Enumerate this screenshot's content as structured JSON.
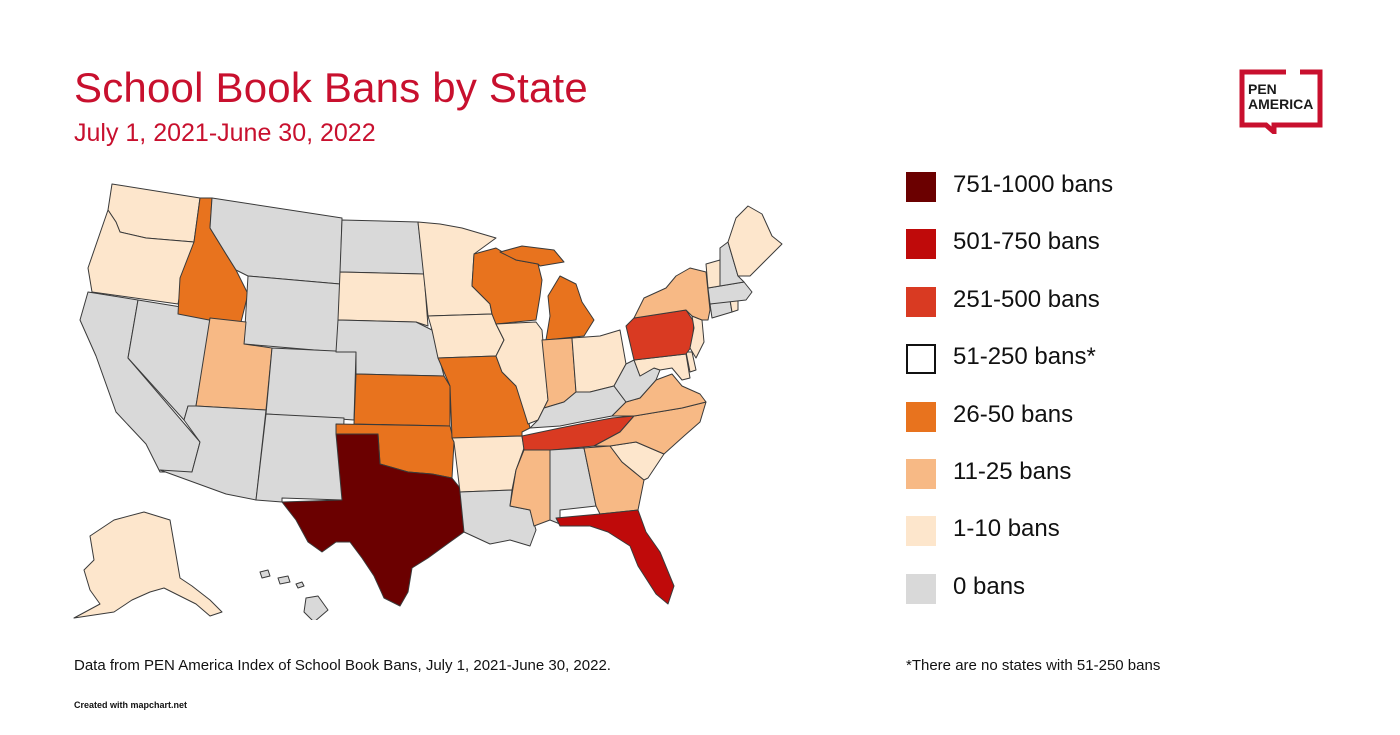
{
  "title": "School Book Bans by State",
  "subtitle": "July 1, 2021-June 30, 2022",
  "logo": {
    "line1": "PEN",
    "line2": "AMERICA",
    "color": "#c8102e"
  },
  "legend": [
    {
      "label": "751-1000 bans",
      "color": "#6b0000",
      "border": "#6b0000"
    },
    {
      "label": "501-750 bans",
      "color": "#bf0a0a",
      "border": "#bf0a0a"
    },
    {
      "label": "251-500 bans",
      "color": "#d93a22",
      "border": "#d93a22"
    },
    {
      "label": "51-250 bans*",
      "color": "#ffffff",
      "border": "#111111"
    },
    {
      "label": "26-50 bans",
      "color": "#e8731e",
      "border": "#e8731e"
    },
    {
      "label": "11-25 bans",
      "color": "#f7b985",
      "border": "#f7b985"
    },
    {
      "label": "1-10 bans",
      "color": "#fde6cc",
      "border": "#fde6cc"
    },
    {
      "label": "0 bans",
      "color": "#d9d9d9",
      "border": "#d9d9d9"
    }
  ],
  "footnote": "*There are no states with 51-250 bans",
  "source": "Data from PEN America Index of School Book Bans, July 1, 2021-June 30, 2022.",
  "credit": "Created with mapchart.net",
  "map": {
    "states": [
      {
        "name": "Washington",
        "category": "1-10 bans"
      },
      {
        "name": "Oregon",
        "category": "1-10 bans"
      },
      {
        "name": "California",
        "category": "0 bans"
      },
      {
        "name": "Nevada",
        "category": "0 bans"
      },
      {
        "name": "Idaho",
        "category": "26-50 bans"
      },
      {
        "name": "Montana",
        "category": "0 bans"
      },
      {
        "name": "Wyoming",
        "category": "0 bans"
      },
      {
        "name": "Utah",
        "category": "11-25 bans"
      },
      {
        "name": "Arizona",
        "category": "0 bans"
      },
      {
        "name": "Colorado",
        "category": "0 bans"
      },
      {
        "name": "New Mexico",
        "category": "0 bans"
      },
      {
        "name": "North Dakota",
        "category": "0 bans"
      },
      {
        "name": "South Dakota",
        "category": "1-10 bans"
      },
      {
        "name": "Nebraska",
        "category": "0 bans"
      },
      {
        "name": "Kansas",
        "category": "26-50 bans"
      },
      {
        "name": "Oklahoma",
        "category": "26-50 bans"
      },
      {
        "name": "Texas",
        "category": "751-1000 bans"
      },
      {
        "name": "Minnesota",
        "category": "1-10 bans"
      },
      {
        "name": "Iowa",
        "category": "1-10 bans"
      },
      {
        "name": "Missouri",
        "category": "26-50 bans"
      },
      {
        "name": "Arkansas",
        "category": "1-10 bans"
      },
      {
        "name": "Louisiana",
        "category": "0 bans"
      },
      {
        "name": "Wisconsin",
        "category": "26-50 bans"
      },
      {
        "name": "Illinois",
        "category": "1-10 bans"
      },
      {
        "name": "Michigan",
        "category": "26-50 bans"
      },
      {
        "name": "Indiana",
        "category": "11-25 bans"
      },
      {
        "name": "Ohio",
        "category": "1-10 bans"
      },
      {
        "name": "Kentucky",
        "category": "0 bans"
      },
      {
        "name": "Tennessee",
        "category": "251-500 bans"
      },
      {
        "name": "Mississippi",
        "category": "11-25 bans"
      },
      {
        "name": "Alabama",
        "category": "0 bans"
      },
      {
        "name": "Georgia",
        "category": "11-25 bans"
      },
      {
        "name": "Florida",
        "category": "501-750 bans"
      },
      {
        "name": "South Carolina",
        "category": "1-10 bans"
      },
      {
        "name": "North Carolina",
        "category": "11-25 bans"
      },
      {
        "name": "Virginia",
        "category": "11-25 bans"
      },
      {
        "name": "West Virginia",
        "category": "0 bans"
      },
      {
        "name": "Maryland",
        "category": "1-10 bans"
      },
      {
        "name": "Delaware",
        "category": "1-10 bans"
      },
      {
        "name": "Pennsylvania",
        "category": "251-500 bans"
      },
      {
        "name": "New Jersey",
        "category": "1-10 bans"
      },
      {
        "name": "New York",
        "category": "11-25 bans"
      },
      {
        "name": "Connecticut",
        "category": "0 bans"
      },
      {
        "name": "Rhode Island",
        "category": "1-10 bans"
      },
      {
        "name": "Massachusetts",
        "category": "0 bans"
      },
      {
        "name": "Vermont",
        "category": "1-10 bans"
      },
      {
        "name": "New Hampshire",
        "category": "0 bans"
      },
      {
        "name": "Maine",
        "category": "1-10 bans"
      },
      {
        "name": "Alaska",
        "category": "1-10 bans"
      },
      {
        "name": "Hawaii",
        "category": "0 bans"
      }
    ]
  }
}
